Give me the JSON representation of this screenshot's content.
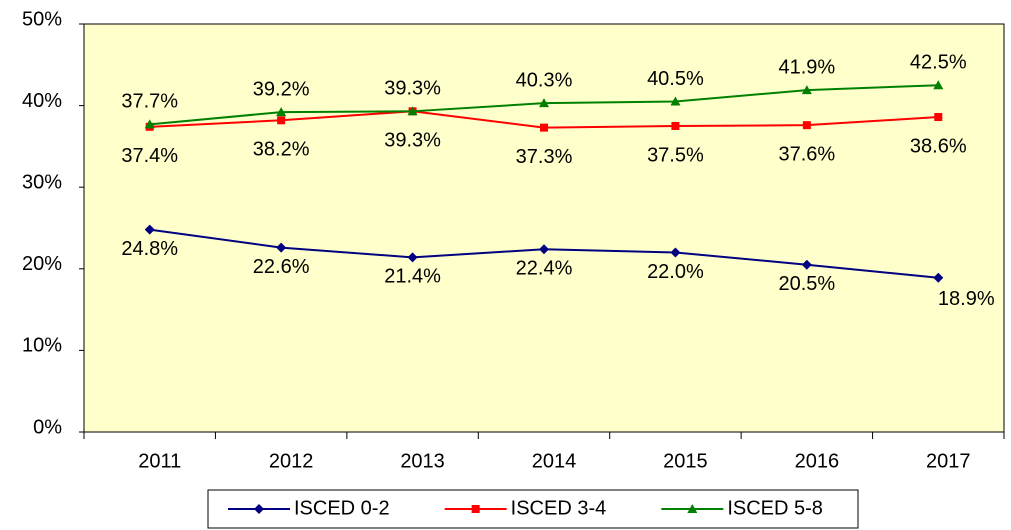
{
  "chart_data": {
    "type": "line",
    "categories": [
      "2011",
      "2012",
      "2013",
      "2014",
      "2015",
      "2016",
      "2017"
    ],
    "series": [
      {
        "name": "ISCED 0-2",
        "color": "#000080",
        "marker": "diamond",
        "values": [
          24.8,
          22.6,
          21.4,
          22.4,
          22.0,
          20.5,
          18.9
        ],
        "value_labels": [
          "24.8%",
          "22.6%",
          "21.4%",
          "22.4%",
          "22.0%",
          "20.5%",
          "18.9%"
        ]
      },
      {
        "name": "ISCED 3-4",
        "color": "#ff0000",
        "marker": "square",
        "values": [
          37.4,
          38.2,
          39.3,
          37.3,
          37.5,
          37.6,
          38.6
        ],
        "value_labels": [
          "37.4%",
          "38.2%",
          "39.3%",
          "37.3%",
          "37.5%",
          "37.6%",
          "38.6%"
        ]
      },
      {
        "name": "ISCED 5-8",
        "color": "#008000",
        "marker": "triangle",
        "values": [
          37.7,
          39.2,
          39.3,
          40.3,
          40.5,
          41.9,
          42.5
        ],
        "value_labels": [
          "37.7%",
          "39.2%",
          "39.3%",
          "40.3%",
          "40.5%",
          "41.9%",
          "42.5%"
        ]
      }
    ],
    "ylim": [
      0,
      50
    ],
    "yticks": [
      {
        "value": 0,
        "label": "0%"
      },
      {
        "value": 10,
        "label": "10%"
      },
      {
        "value": 20,
        "label": "20%"
      },
      {
        "value": 30,
        "label": "30%"
      },
      {
        "value": 40,
        "label": "40%"
      },
      {
        "value": 50,
        "label": "50%"
      }
    ],
    "plot_background": "#ffffcc",
    "legend": "bottom"
  }
}
